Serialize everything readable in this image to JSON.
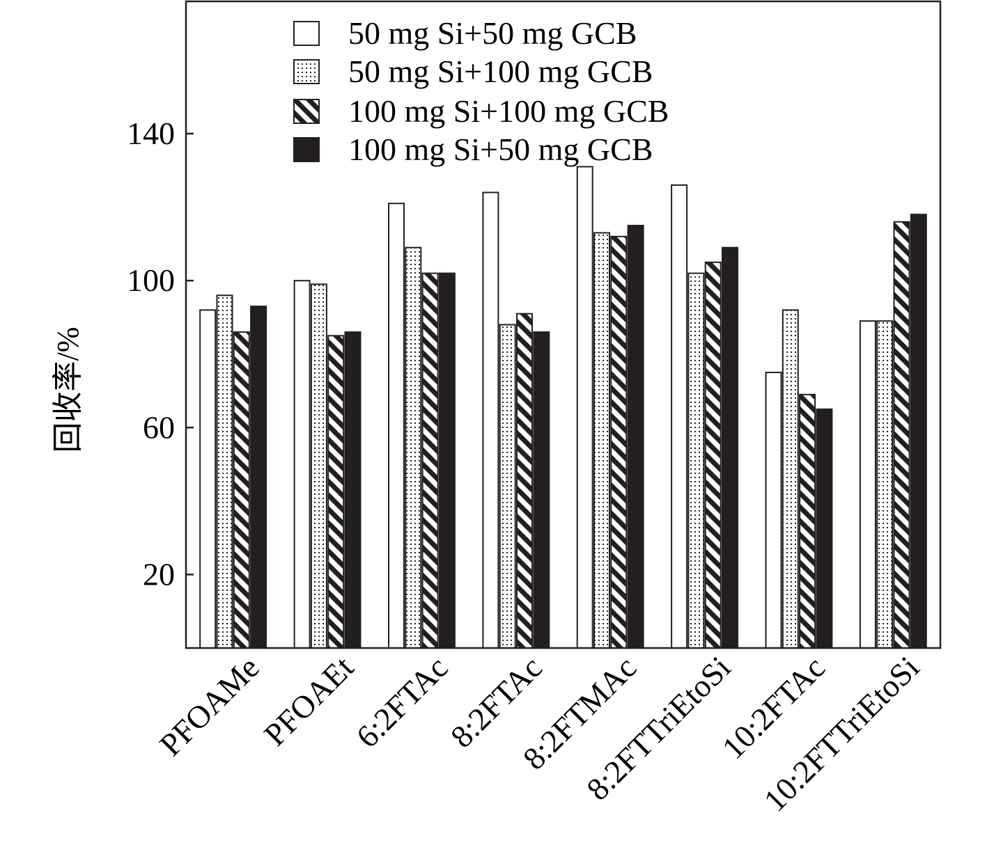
{
  "chart_data": {
    "type": "bar",
    "title": "",
    "xlabel": "",
    "ylabel": "回收率/%",
    "ylim": [
      0,
      176
    ],
    "yticks": [
      20,
      60,
      100,
      140
    ],
    "grid": false,
    "legend_position": "top-center",
    "categories": [
      "PFOAMe",
      "PFOAEt",
      "6:2FTAc",
      "8:2FTAc",
      "8:2FTMAc",
      "8:2FTTriEtoSi",
      "10:2FTAc",
      "10:2FTTriEtoSi"
    ],
    "series": [
      {
        "name": "50 mg Si+50 mg GCB",
        "pattern": "empty",
        "values": [
          92,
          100,
          121,
          124,
          131,
          126,
          75,
          89
        ]
      },
      {
        "name": "50 mg Si+100 mg GCB",
        "pattern": "dots",
        "values": [
          96,
          99,
          109,
          88,
          113,
          102,
          92,
          89
        ]
      },
      {
        "name": "100 mg Si+100 mg GCB",
        "pattern": "diagonal",
        "values": [
          86,
          85,
          102,
          91,
          112,
          105,
          69,
          116
        ]
      },
      {
        "name": "100 mg Si+50 mg GCB",
        "pattern": "solid",
        "values": [
          93,
          86,
          102,
          86,
          115,
          109,
          65,
          118
        ]
      }
    ],
    "colors": {
      "fill": "#231f20",
      "stroke": "#231f20",
      "background": "#ffffff"
    }
  }
}
